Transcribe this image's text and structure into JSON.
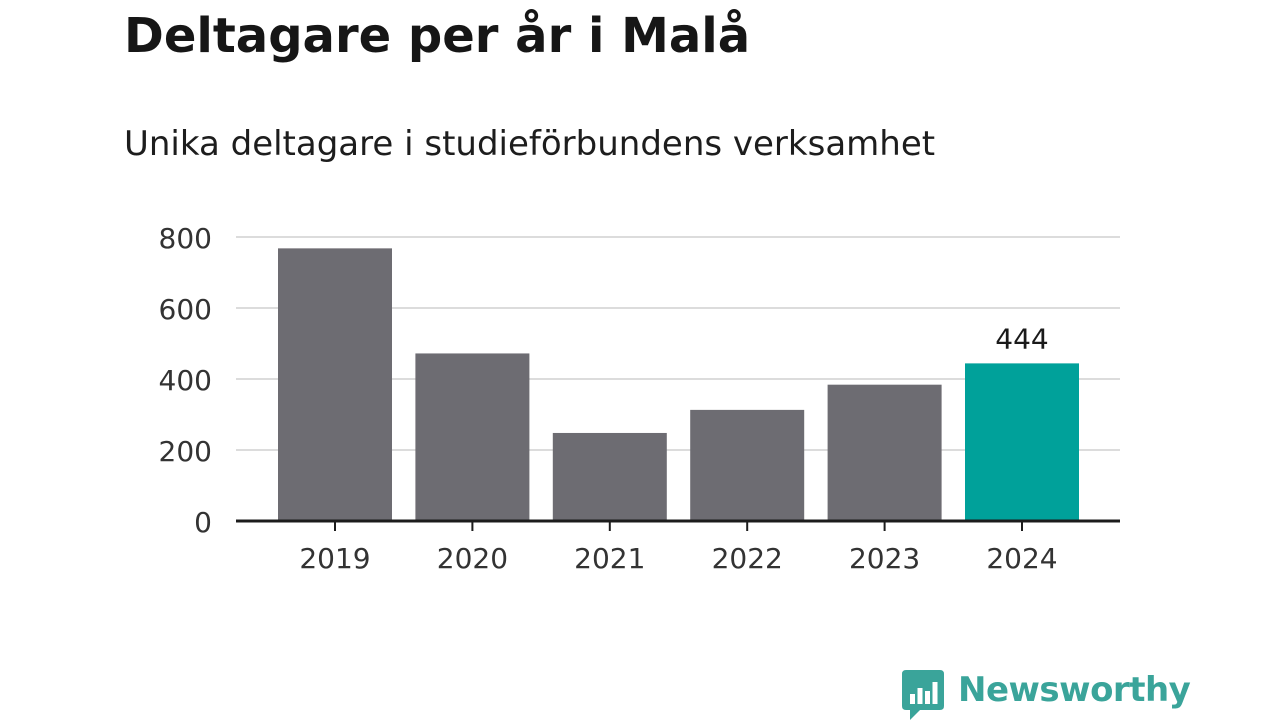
{
  "header": {
    "title": "Deltagare per år i Malå",
    "subtitle": "Unika deltagare i studieförbundens verksamhet"
  },
  "chart_data": {
    "type": "bar",
    "categories": [
      "2019",
      "2020",
      "2021",
      "2022",
      "2023",
      "2024"
    ],
    "values": [
      768,
      472,
      248,
      313,
      384,
      444
    ],
    "ylim": [
      0,
      800
    ],
    "yticks": [
      "0",
      "200",
      "400",
      "600",
      "800"
    ],
    "grid": true,
    "data_labels": [
      {
        "category": "2024",
        "text": "444"
      }
    ],
    "colors": {
      "bar": "#6d6c72",
      "highlight": "#00a19a",
      "grid": "#dcdcdc",
      "axis": "#1c1c1c"
    },
    "highlight_category": "2024"
  },
  "branding": {
    "logo_text": "Newsworthy",
    "logo_icon": "bar-chart-speech-bubble-icon",
    "logo_color": "#3aa49a"
  }
}
